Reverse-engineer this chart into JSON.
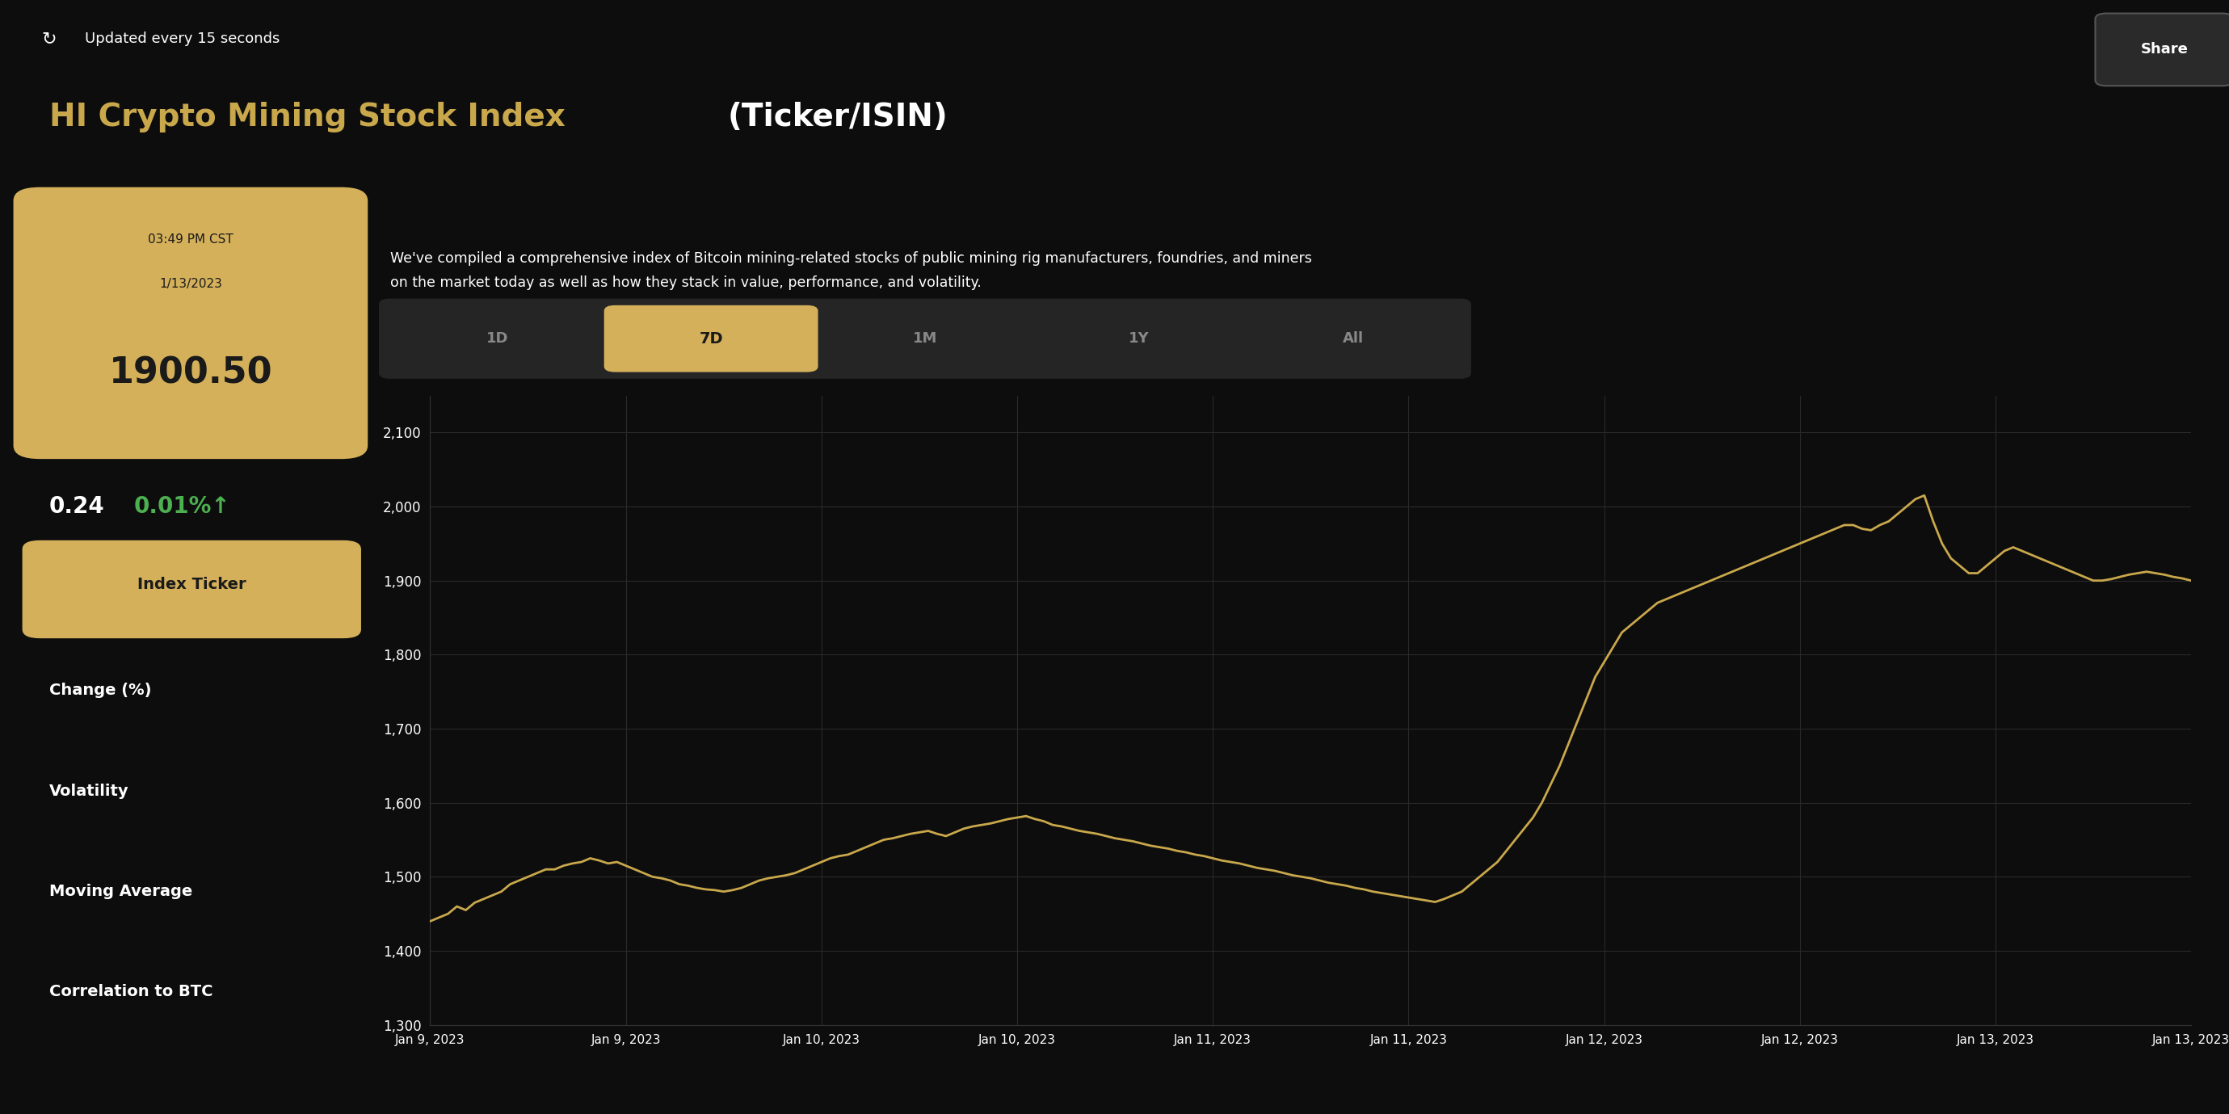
{
  "bg_color": "#0d0d0d",
  "panel_color": "#1a1a1a",
  "gold_color": "#c9a84c",
  "gold_light": "#d4b05a",
  "gold_box_color": "#c9a84c",
  "white_color": "#ffffff",
  "gray_color": "#888888",
  "green_color": "#4caf50",
  "grid_color": "#2a2a2a",
  "line_color": "#c9a84c",
  "title_gold": "HI Crypto Mining Stock Index ",
  "title_white": "(Ticker/ISIN)",
  "subtitle_text": "We've compiled a comprehensive index of Bitcoin mining-related stocks of public mining rig manufacturers, foundries, and miners\non the market today as well as how they stack in value, performance, and volatility.",
  "updated_text": "Updated every 15 seconds",
  "time_label": "03:49 PM CST",
  "date_label": "1/13/2023",
  "price_label": "1900.50",
  "change_label": "0.24",
  "change_pct": "0.01%↑",
  "tab_labels": [
    "1D",
    "7D",
    "1M",
    "1Y",
    "All"
  ],
  "active_tab": "7D",
  "sidebar_labels": [
    "Index Ticker",
    "Change (%)",
    "Volatility",
    "Moving Average",
    "Correlation to BTC"
  ],
  "share_button": "Share",
  "yticks": [
    1300,
    1400,
    1500,
    1600,
    1700,
    1800,
    1900,
    2000,
    2100
  ],
  "ylim": [
    1300,
    2150
  ],
  "xtick_labels": [
    "Jan 9, 2023",
    "Jan 9, 2023",
    "Jan 10, 2023",
    "Jan 10, 2023",
    "Jan 11, 2023",
    "Jan 11, 2023",
    "Jan 12, 2023",
    "Jan 12, 2023",
    "Jan 13, 2023",
    "Jan 13, 2023"
  ],
  "series_x": [
    0,
    0.05,
    0.1,
    0.15,
    0.2,
    0.25,
    0.3,
    0.35,
    0.4,
    0.45,
    0.5,
    0.55,
    0.6,
    0.65,
    0.7,
    0.75,
    0.8,
    0.85,
    0.9,
    0.95,
    1.0,
    1.05,
    1.1,
    1.15,
    1.2,
    1.25,
    1.3,
    1.35,
    1.4,
    1.45,
    1.5,
    1.55,
    1.6,
    1.65,
    1.7,
    1.75,
    1.8,
    1.85,
    1.9,
    1.95,
    2.0,
    2.05,
    2.1,
    2.15,
    2.2,
    2.25,
    2.3,
    2.35,
    2.4,
    2.45,
    2.5,
    2.55,
    2.6,
    2.65,
    2.7,
    2.75,
    2.8,
    2.85,
    2.9,
    2.95,
    3.0,
    3.05,
    3.1,
    3.15,
    3.2,
    3.25,
    3.3,
    3.35,
    3.4,
    3.45,
    3.5,
    3.55,
    3.6,
    3.65,
    3.7,
    3.75,
    3.8,
    3.85,
    3.9,
    3.95,
    4.0,
    4.05,
    4.1,
    4.15,
    4.2,
    4.25,
    4.3,
    4.35,
    4.4,
    4.45,
    4.5,
    4.55,
    4.6,
    4.65,
    4.7,
    4.75,
    4.8,
    4.85,
    4.9,
    4.95,
    5.0,
    5.05,
    5.1,
    5.15,
    5.2,
    5.25,
    5.3,
    5.35,
    5.4,
    5.45,
    5.5,
    5.55,
    5.6,
    5.65,
    5.7,
    5.75,
    5.8,
    5.85,
    5.9,
    5.95,
    6.0,
    6.05,
    6.1,
    6.15,
    6.2,
    6.25,
    6.3,
    6.35,
    6.4,
    6.45,
    6.5,
    6.55,
    6.6,
    6.65,
    6.7,
    6.75,
    6.8,
    6.85,
    6.9,
    6.95,
    7.0,
    7.05,
    7.1,
    7.15,
    7.2,
    7.25,
    7.3,
    7.35,
    7.4,
    7.45,
    7.5,
    7.55,
    7.6,
    7.65,
    7.7,
    7.75,
    7.8,
    7.85,
    7.9,
    7.95,
    8.0,
    8.05,
    8.1,
    8.15,
    8.2,
    8.25,
    8.3,
    8.35,
    8.4,
    8.45,
    8.5,
    8.55,
    8.6,
    8.65,
    8.7,
    8.75,
    8.8,
    8.85,
    8.9,
    8.95,
    9.0,
    9.05,
    9.1,
    9.15,
    9.2,
    9.25,
    9.3,
    9.35,
    9.4,
    9.45,
    9.5,
    9.55,
    9.6,
    9.65,
    9.7,
    9.75,
    9.8,
    9.85,
    9.9
  ],
  "series_y": [
    1440,
    1445,
    1450,
    1460,
    1455,
    1465,
    1470,
    1475,
    1480,
    1490,
    1495,
    1500,
    1505,
    1510,
    1510,
    1515,
    1518,
    1520,
    1525,
    1522,
    1518,
    1520,
    1515,
    1510,
    1505,
    1500,
    1498,
    1495,
    1490,
    1488,
    1485,
    1483,
    1482,
    1480,
    1482,
    1485,
    1490,
    1495,
    1498,
    1500,
    1502,
    1505,
    1510,
    1515,
    1520,
    1525,
    1528,
    1530,
    1535,
    1540,
    1545,
    1550,
    1552,
    1555,
    1558,
    1560,
    1562,
    1558,
    1555,
    1560,
    1565,
    1568,
    1570,
    1572,
    1575,
    1578,
    1580,
    1582,
    1578,
    1575,
    1570,
    1568,
    1565,
    1562,
    1560,
    1558,
    1555,
    1552,
    1550,
    1548,
    1545,
    1542,
    1540,
    1538,
    1535,
    1533,
    1530,
    1528,
    1525,
    1522,
    1520,
    1518,
    1515,
    1512,
    1510,
    1508,
    1505,
    1502,
    1500,
    1498,
    1495,
    1492,
    1490,
    1488,
    1485,
    1483,
    1480,
    1478,
    1476,
    1474,
    1472,
    1470,
    1468,
    1466,
    1470,
    1475,
    1480,
    1490,
    1500,
    1510,
    1520,
    1535,
    1550,
    1565,
    1580,
    1600,
    1625,
    1650,
    1680,
    1710,
    1740,
    1770,
    1790,
    1810,
    1830,
    1840,
    1850,
    1860,
    1870,
    1875,
    1880,
    1885,
    1890,
    1895,
    1900,
    1905,
    1910,
    1915,
    1920,
    1925,
    1930,
    1935,
    1940,
    1945,
    1950,
    1955,
    1960,
    1965,
    1970,
    1975,
    1975,
    1970,
    1968,
    1975,
    1980,
    1990,
    2000,
    2010,
    2015,
    1980,
    1950,
    1930,
    1920,
    1910,
    1910,
    1920,
    1930,
    1940,
    1945,
    1940,
    1935,
    1930,
    1925,
    1920,
    1915,
    1910,
    1905,
    1900,
    1900,
    1902,
    1905,
    1908,
    1910,
    1912,
    1910,
    1908,
    1905,
    1903,
    1900
  ]
}
